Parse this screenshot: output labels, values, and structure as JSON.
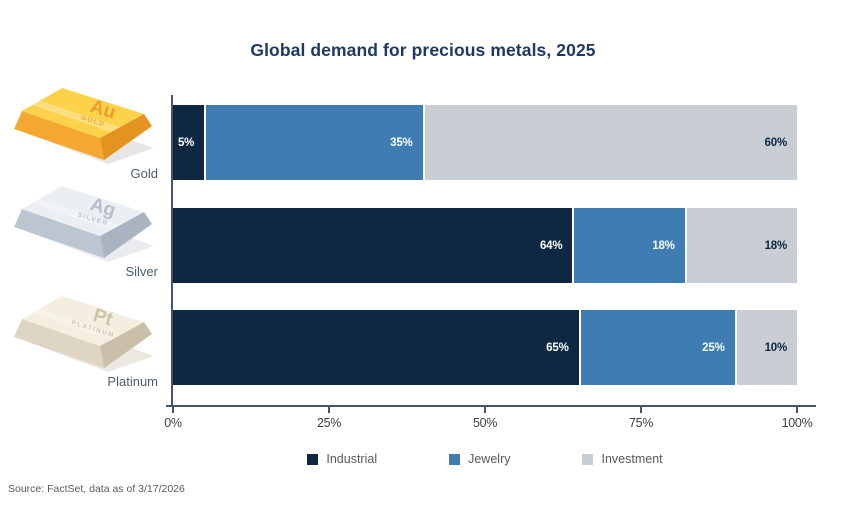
{
  "title": "Global demand for precious metals, 2025",
  "source_note": "Source: FactSet, data as of 3/17/2026",
  "colors": {
    "background": "#ffffff",
    "title": "#1f3864",
    "axis": "#44546a",
    "tick_label": "#3f3f3f",
    "legend_text": "#595959",
    "metal_label": "#4d5d6e",
    "source_text": "#595959",
    "segment_gap": "#ffffff"
  },
  "x_axis": {
    "ticks": [
      "0%",
      "25%",
      "50%",
      "75%",
      "100%"
    ]
  },
  "legend": [
    {
      "name": "Industrial",
      "color": "#0e2841",
      "value_text_color": "#ffffff"
    },
    {
      "name": "Jewelry",
      "color": "#3e7cb1",
      "value_text_color": "#ffffff"
    },
    {
      "name": "Investment",
      "color": "#c9cdd4",
      "value_text_color": "#0e2841"
    }
  ],
  "metals": [
    {
      "label": "Gold",
      "symbol": "Au",
      "engraving": "GOLD",
      "icon": "gold-ingot-icon",
      "palette": {
        "top": "#fdd24b",
        "front": "#f5a82f",
        "side": "#e3931f",
        "text": "#ef9d2e",
        "shadow": "#dcdcdc"
      }
    },
    {
      "label": "Silver",
      "symbol": "Ag",
      "engraving": "SILVER",
      "icon": "silver-ingot-icon",
      "palette": {
        "top": "#ebeff4",
        "front": "#bcc6d1",
        "side": "#a9b4c0",
        "text": "#b4c0cd",
        "shadow": "#e0e3e7"
      }
    },
    {
      "label": "Platinum",
      "symbol": "Pt",
      "engraving": "PLATINUM",
      "icon": "platinum-ingot-icon",
      "palette": {
        "top": "#f4eee0",
        "front": "#ded5c2",
        "side": "#cabfa9",
        "text": "#cfc3a6",
        "shadow": "#e2ded6"
      }
    }
  ],
  "chart_data": {
    "type": "bar",
    "stacked": true,
    "orientation": "horizontal",
    "title": "Global demand for precious metals, 2025",
    "categories": [
      "Gold",
      "Silver",
      "Platinum"
    ],
    "series": [
      {
        "name": "Industrial",
        "color": "#0e2841",
        "values": [
          5,
          64,
          65
        ]
      },
      {
        "name": "Jewelry",
        "color": "#3e7cb1",
        "values": [
          35,
          18,
          25
        ]
      },
      {
        "name": "Investment",
        "color": "#c9cdd4",
        "values": [
          60,
          18,
          10
        ]
      }
    ],
    "xlabel": "",
    "ylabel": "",
    "xlim": [
      0,
      100
    ],
    "x_tick_labels": [
      "0%",
      "25%",
      "50%",
      "75%",
      "100%"
    ],
    "value_label_format": "{value}%",
    "value_labels_position": "inside-right",
    "legend_position": "bottom",
    "grid": false
  }
}
